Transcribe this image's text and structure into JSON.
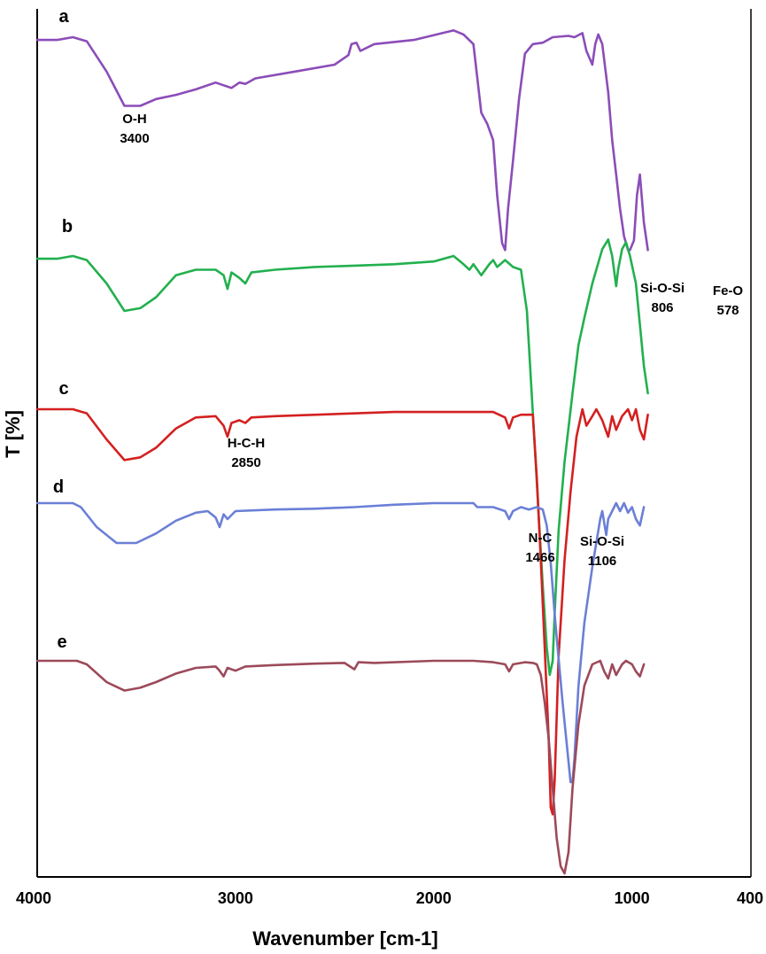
{
  "chart_data": {
    "type": "line",
    "xlabel": "Wavenumber [cm-1]",
    "ylabel": "T [%]",
    "xlim": [
      4000,
      400
    ],
    "x_reversed": true,
    "grid": false,
    "y_scale": "offset stacked transmittance (arbitrary units)",
    "x_ticks": [
      {
        "value": 4000,
        "label": "4000"
      },
      {
        "value": 3000,
        "label": "3000"
      },
      {
        "value": 2000,
        "label": "2000"
      },
      {
        "value": 1000,
        "label": "1000"
      },
      {
        "value": 400,
        "label": "400"
      }
    ],
    "series": [
      {
        "name": "a",
        "color": "#8b4db8",
        "points": [
          [
            4000,
            0.02
          ],
          [
            3900,
            0.02
          ],
          [
            3820,
            0.0
          ],
          [
            3750,
            0.03
          ],
          [
            3650,
            0.25
          ],
          [
            3560,
            0.5
          ],
          [
            3480,
            0.5
          ],
          [
            3400,
            0.45
          ],
          [
            3300,
            0.42
          ],
          [
            3200,
            0.38
          ],
          [
            3100,
            0.33
          ],
          [
            3060,
            0.35
          ],
          [
            3020,
            0.37
          ],
          [
            2980,
            0.33
          ],
          [
            2950,
            0.34
          ],
          [
            2900,
            0.3
          ],
          [
            2700,
            0.25
          ],
          [
            2500,
            0.2
          ],
          [
            2430,
            0.13
          ],
          [
            2415,
            0.05
          ],
          [
            2390,
            0.04
          ],
          [
            2370,
            0.1
          ],
          [
            2300,
            0.05
          ],
          [
            2100,
            0.02
          ],
          [
            1900,
            -0.05
          ],
          [
            1850,
            -0.02
          ],
          [
            1800,
            0.05
          ],
          [
            1760,
            0.55
          ],
          [
            1730,
            0.63
          ],
          [
            1700,
            0.75
          ],
          [
            1680,
            1.15
          ],
          [
            1655,
            1.5
          ],
          [
            1640,
            1.55
          ],
          [
            1625,
            1.25
          ],
          [
            1600,
            0.9
          ],
          [
            1570,
            0.45
          ],
          [
            1540,
            0.12
          ],
          [
            1500,
            0.05
          ],
          [
            1450,
            0.04
          ],
          [
            1400,
            0.0
          ],
          [
            1320,
            -0.01
          ],
          [
            1290,
            0.0
          ],
          [
            1250,
            -0.03
          ],
          [
            1230,
            0.1
          ],
          [
            1200,
            0.2
          ],
          [
            1185,
            0.05
          ],
          [
            1170,
            -0.02
          ],
          [
            1150,
            0.05
          ],
          [
            1120,
            0.4
          ],
          [
            1100,
            0.75
          ],
          [
            1080,
            1.0
          ],
          [
            1060,
            1.25
          ],
          [
            1040,
            1.45
          ],
          [
            1020,
            1.55
          ],
          [
            1010,
            1.55
          ],
          [
            990,
            1.48
          ],
          [
            975,
            1.15
          ],
          [
            960,
            1.0
          ],
          [
            940,
            1.35
          ],
          [
            920,
            1.55
          ]
        ]
      },
      {
        "name": "b",
        "color": "#22b04e",
        "points": [
          [
            4000,
            0.02
          ],
          [
            3900,
            0.02
          ],
          [
            3820,
            0.0
          ],
          [
            3750,
            0.03
          ],
          [
            3650,
            0.2
          ],
          [
            3560,
            0.4
          ],
          [
            3480,
            0.38
          ],
          [
            3400,
            0.3
          ],
          [
            3300,
            0.14
          ],
          [
            3200,
            0.1
          ],
          [
            3100,
            0.1
          ],
          [
            3060,
            0.14
          ],
          [
            3040,
            0.24
          ],
          [
            3020,
            0.12
          ],
          [
            2980,
            0.16
          ],
          [
            2950,
            0.2
          ],
          [
            2920,
            0.12
          ],
          [
            2800,
            0.1
          ],
          [
            2600,
            0.08
          ],
          [
            2400,
            0.07
          ],
          [
            2200,
            0.06
          ],
          [
            2000,
            0.04
          ],
          [
            1900,
            0.0
          ],
          [
            1850,
            0.06
          ],
          [
            1820,
            0.1
          ],
          [
            1800,
            0.06
          ],
          [
            1780,
            0.1
          ],
          [
            1760,
            0.14
          ],
          [
            1720,
            0.06
          ],
          [
            1700,
            0.03
          ],
          [
            1680,
            0.08
          ],
          [
            1640,
            0.03
          ],
          [
            1600,
            0.08
          ],
          [
            1560,
            0.1
          ],
          [
            1530,
            0.4
          ],
          [
            1510,
            0.9
          ],
          [
            1490,
            1.4
          ],
          [
            1470,
            1.9
          ],
          [
            1450,
            2.4
          ],
          [
            1430,
            2.85
          ],
          [
            1415,
            3.05
          ],
          [
            1400,
            2.95
          ],
          [
            1390,
            2.6
          ],
          [
            1370,
            2.0
          ],
          [
            1340,
            1.5
          ],
          [
            1300,
            1.0
          ],
          [
            1270,
            0.65
          ],
          [
            1240,
            0.45
          ],
          [
            1200,
            0.2
          ],
          [
            1150,
            -0.05
          ],
          [
            1120,
            -0.12
          ],
          [
            1100,
            0.0
          ],
          [
            1080,
            0.22
          ],
          [
            1070,
            0.1
          ],
          [
            1050,
            -0.05
          ],
          [
            1030,
            -0.1
          ],
          [
            1010,
            0.0
          ],
          [
            980,
            0.2
          ],
          [
            960,
            0.5
          ],
          [
            940,
            0.8
          ],
          [
            920,
            1.0
          ]
        ]
      },
      {
        "name": "c",
        "color": "#d42020",
        "points": [
          [
            4000,
            0.0
          ],
          [
            3900,
            0.0
          ],
          [
            3820,
            0.0
          ],
          [
            3750,
            0.03
          ],
          [
            3650,
            0.22
          ],
          [
            3560,
            0.37
          ],
          [
            3480,
            0.35
          ],
          [
            3400,
            0.28
          ],
          [
            3300,
            0.14
          ],
          [
            3200,
            0.06
          ],
          [
            3100,
            0.05
          ],
          [
            3060,
            0.12
          ],
          [
            3040,
            0.2
          ],
          [
            3020,
            0.1
          ],
          [
            2980,
            0.08
          ],
          [
            2950,
            0.1
          ],
          [
            2920,
            0.06
          ],
          [
            2800,
            0.05
          ],
          [
            2200,
            0.02
          ],
          [
            2000,
            0.02
          ],
          [
            1700,
            0.02
          ],
          [
            1640,
            0.06
          ],
          [
            1620,
            0.14
          ],
          [
            1600,
            0.06
          ],
          [
            1560,
            0.04
          ],
          [
            1500,
            0.04
          ],
          [
            1480,
            0.5
          ],
          [
            1460,
            1.1
          ],
          [
            1440,
            1.75
          ],
          [
            1420,
            2.4
          ],
          [
            1410,
            2.9
          ],
          [
            1400,
            2.95
          ],
          [
            1390,
            2.7
          ],
          [
            1370,
            1.8
          ],
          [
            1340,
            1.1
          ],
          [
            1310,
            0.6
          ],
          [
            1280,
            0.2
          ],
          [
            1250,
            0.0
          ],
          [
            1230,
            0.12
          ],
          [
            1200,
            0.05
          ],
          [
            1180,
            0.0
          ],
          [
            1150,
            0.08
          ],
          [
            1120,
            0.2
          ],
          [
            1100,
            0.05
          ],
          [
            1080,
            0.15
          ],
          [
            1050,
            0.05
          ],
          [
            1020,
            0.0
          ],
          [
            1000,
            0.08
          ],
          [
            980,
            0.0
          ],
          [
            960,
            0.15
          ],
          [
            940,
            0.22
          ],
          [
            920,
            0.04
          ]
        ]
      },
      {
        "name": "d",
        "color": "#6b7fd6",
        "points": [
          [
            4000,
            0.0
          ],
          [
            3900,
            0.0
          ],
          [
            3820,
            0.0
          ],
          [
            3780,
            0.05
          ],
          [
            3700,
            0.3
          ],
          [
            3600,
            0.5
          ],
          [
            3500,
            0.5
          ],
          [
            3400,
            0.38
          ],
          [
            3300,
            0.22
          ],
          [
            3200,
            0.12
          ],
          [
            3140,
            0.1
          ],
          [
            3100,
            0.18
          ],
          [
            3080,
            0.3
          ],
          [
            3060,
            0.14
          ],
          [
            3040,
            0.2
          ],
          [
            3000,
            0.1
          ],
          [
            2800,
            0.08
          ],
          [
            2600,
            0.07
          ],
          [
            2400,
            0.05
          ],
          [
            2200,
            0.02
          ],
          [
            2000,
            0.0
          ],
          [
            1800,
            0.0
          ],
          [
            1780,
            0.05
          ],
          [
            1700,
            0.05
          ],
          [
            1640,
            0.1
          ],
          [
            1620,
            0.2
          ],
          [
            1600,
            0.1
          ],
          [
            1560,
            0.05
          ],
          [
            1520,
            0.08
          ],
          [
            1480,
            0.05
          ],
          [
            1450,
            0.08
          ],
          [
            1430,
            0.28
          ],
          [
            1410,
            0.75
          ],
          [
            1390,
            1.4
          ],
          [
            1370,
            1.95
          ],
          [
            1350,
            2.5
          ],
          [
            1330,
            3.0
          ],
          [
            1310,
            3.5
          ],
          [
            1300,
            3.5
          ],
          [
            1290,
            3.2
          ],
          [
            1270,
            2.3
          ],
          [
            1240,
            1.5
          ],
          [
            1200,
            0.8
          ],
          [
            1160,
            0.2
          ],
          [
            1150,
            0.1
          ],
          [
            1130,
            0.4
          ],
          [
            1120,
            0.2
          ],
          [
            1080,
            0.0
          ],
          [
            1060,
            0.1
          ],
          [
            1040,
            0.0
          ],
          [
            1020,
            0.12
          ],
          [
            1000,
            0.05
          ],
          [
            980,
            0.2
          ],
          [
            960,
            0.28
          ],
          [
            940,
            0.05
          ]
        ]
      },
      {
        "name": "e",
        "color": "#9c4a5a",
        "points": [
          [
            4000,
            0.0
          ],
          [
            3900,
            0.0
          ],
          [
            3800,
            0.0
          ],
          [
            3750,
            0.05
          ],
          [
            3650,
            0.3
          ],
          [
            3560,
            0.42
          ],
          [
            3480,
            0.38
          ],
          [
            3400,
            0.3
          ],
          [
            3300,
            0.18
          ],
          [
            3200,
            0.1
          ],
          [
            3100,
            0.08
          ],
          [
            3080,
            0.14
          ],
          [
            3060,
            0.22
          ],
          [
            3040,
            0.1
          ],
          [
            3000,
            0.14
          ],
          [
            2950,
            0.08
          ],
          [
            2800,
            0.06
          ],
          [
            2600,
            0.04
          ],
          [
            2450,
            0.03
          ],
          [
            2400,
            0.12
          ],
          [
            2380,
            0.02
          ],
          [
            2300,
            0.03
          ],
          [
            2000,
            0.0
          ],
          [
            1800,
            0.0
          ],
          [
            1700,
            0.02
          ],
          [
            1640,
            0.05
          ],
          [
            1620,
            0.15
          ],
          [
            1600,
            0.05
          ],
          [
            1540,
            0.02
          ],
          [
            1500,
            0.03
          ],
          [
            1480,
            0.05
          ],
          [
            1460,
            0.2
          ],
          [
            1440,
            0.6
          ],
          [
            1420,
            1.1
          ],
          [
            1400,
            1.8
          ],
          [
            1380,
            2.5
          ],
          [
            1360,
            2.9
          ],
          [
            1340,
            3.0
          ],
          [
            1320,
            2.7
          ],
          [
            1300,
            1.8
          ],
          [
            1270,
            0.9
          ],
          [
            1240,
            0.35
          ],
          [
            1200,
            0.05
          ],
          [
            1160,
            0.0
          ],
          [
            1140,
            0.15
          ],
          [
            1120,
            0.25
          ],
          [
            1100,
            0.05
          ],
          [
            1080,
            0.2
          ],
          [
            1050,
            0.05
          ],
          [
            1030,
            0.0
          ],
          [
            1000,
            0.05
          ],
          [
            980,
            0.15
          ],
          [
            960,
            0.22
          ],
          [
            940,
            0.05
          ]
        ]
      }
    ],
    "annotations": [
      {
        "label": "O-H",
        "value": "3400"
      },
      {
        "label": "H-C-H",
        "value": "2850"
      },
      {
        "label": "N-C",
        "value": "1466"
      },
      {
        "label": "Si-O-Si",
        "value": "1106"
      },
      {
        "label": "Si-O-Si",
        "value": "806"
      },
      {
        "label": "Fe-O",
        "value": "578"
      }
    ]
  }
}
